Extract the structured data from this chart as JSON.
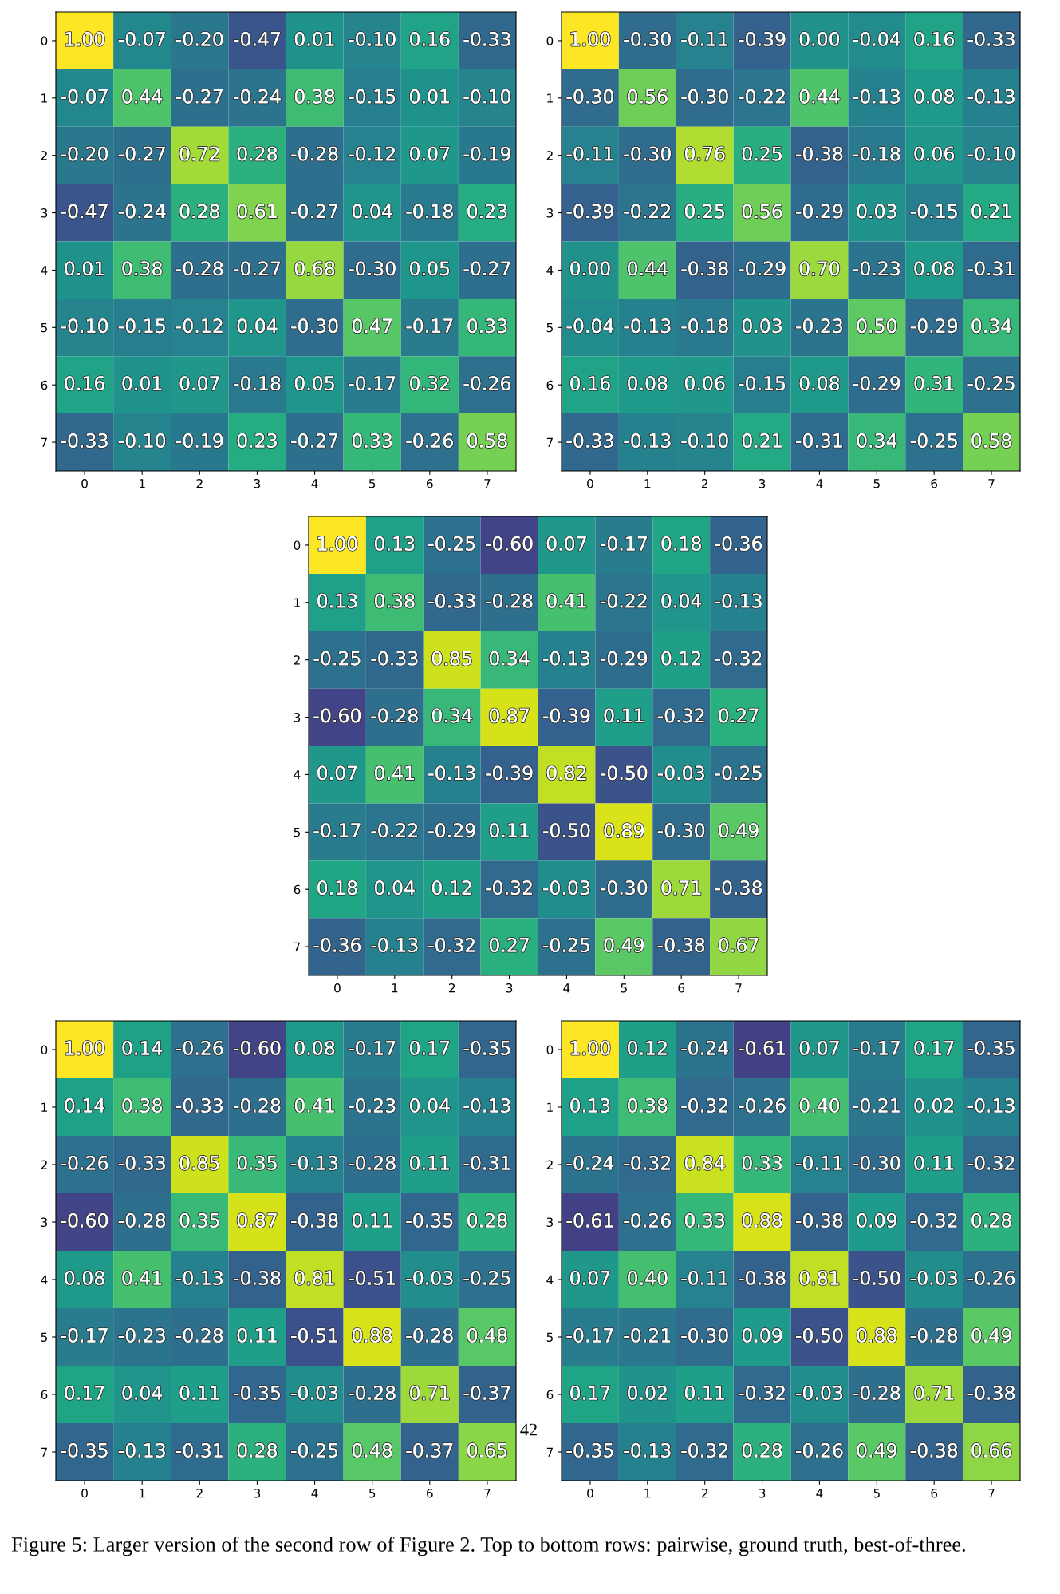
{
  "chart_data": [
    {
      "type": "heatmap",
      "categories": [
        "0",
        "1",
        "2",
        "3",
        "4",
        "5",
        "6",
        "7"
      ],
      "y_categories": [
        "0",
        "1",
        "2",
        "3",
        "4",
        "5",
        "6",
        "7"
      ],
      "data_labels": true,
      "cells": [
        [
          1.0,
          -0.07,
          -0.2,
          -0.47,
          0.01,
          -0.1,
          0.16,
          -0.33
        ],
        [
          -0.07,
          0.44,
          -0.27,
          -0.24,
          0.38,
          -0.15,
          0.01,
          -0.1
        ],
        [
          -0.2,
          -0.27,
          0.72,
          0.28,
          -0.28,
          -0.12,
          0.07,
          -0.19
        ],
        [
          -0.47,
          -0.24,
          0.28,
          0.61,
          -0.27,
          0.04,
          -0.18,
          0.23
        ],
        [
          0.01,
          0.38,
          -0.28,
          -0.27,
          0.68,
          -0.3,
          0.05,
          -0.27
        ],
        [
          -0.1,
          -0.15,
          -0.12,
          0.04,
          -0.3,
          0.47,
          -0.17,
          0.33
        ],
        [
          0.16,
          0.01,
          0.07,
          -0.18,
          0.05,
          -0.17,
          0.32,
          -0.26
        ],
        [
          -0.33,
          -0.1,
          -0.19,
          0.23,
          -0.27,
          0.33,
          -0.26,
          0.58
        ]
      ],
      "cell_labels": [
        [
          "1.00",
          "-0.07",
          "-0.20",
          "-0.47",
          "0.01",
          "-0.10",
          "0.16",
          "-0.33"
        ],
        [
          "-0.07",
          "0.44",
          "-0.27",
          "-0.24",
          "0.38",
          "-0.15",
          "0.01",
          "-0.10"
        ],
        [
          "-0.20",
          "-0.27",
          "0.72",
          "0.28",
          "-0.28",
          "-0.12",
          "0.07",
          "-0.19"
        ],
        [
          "-0.47",
          "-0.24",
          "0.28",
          "0.61",
          "-0.27",
          "0.04",
          "-0.18",
          "0.23"
        ],
        [
          "0.01",
          "0.38",
          "-0.28",
          "-0.27",
          "0.68",
          "-0.30",
          "0.05",
          "-0.27"
        ],
        [
          "-0.10",
          "-0.15",
          "-0.12",
          "0.04",
          "-0.30",
          "0.47",
          "-0.17",
          "0.33"
        ],
        [
          "0.16",
          "0.01",
          "0.07",
          "-0.18",
          "0.05",
          "-0.17",
          "0.32",
          "-0.26"
        ],
        [
          "-0.33",
          "-0.10",
          "-0.19",
          "0.23",
          "-0.27",
          "0.33",
          "-0.26",
          "0.58"
        ]
      ]
    },
    {
      "type": "heatmap",
      "categories": [
        "0",
        "1",
        "2",
        "3",
        "4",
        "5",
        "6",
        "7"
      ],
      "y_categories": [
        "0",
        "1",
        "2",
        "3",
        "4",
        "5",
        "6",
        "7"
      ],
      "data_labels": true,
      "cells": [
        [
          1.0,
          -0.3,
          -0.11,
          -0.39,
          0.0,
          -0.04,
          0.16,
          -0.33
        ],
        [
          -0.3,
          0.56,
          -0.3,
          -0.22,
          0.44,
          -0.13,
          0.08,
          -0.13
        ],
        [
          -0.11,
          -0.3,
          0.76,
          0.25,
          -0.38,
          -0.18,
          0.06,
          -0.1
        ],
        [
          -0.39,
          -0.22,
          0.25,
          0.56,
          -0.29,
          0.03,
          -0.15,
          0.21
        ],
        [
          0.0,
          0.44,
          -0.38,
          -0.29,
          0.7,
          -0.23,
          0.08,
          -0.31
        ],
        [
          -0.04,
          -0.13,
          -0.18,
          0.03,
          -0.23,
          0.5,
          -0.29,
          0.34
        ],
        [
          0.16,
          0.08,
          0.06,
          -0.15,
          0.08,
          -0.29,
          0.31,
          -0.25
        ],
        [
          -0.33,
          -0.13,
          -0.1,
          0.21,
          -0.31,
          0.34,
          -0.25,
          0.58
        ]
      ],
      "cell_labels": [
        [
          "1.00",
          "-0.30",
          "-0.11",
          "-0.39",
          "0.00",
          "-0.04",
          "0.16",
          "-0.33"
        ],
        [
          "-0.30",
          "0.56",
          "-0.30",
          "-0.22",
          "0.44",
          "-0.13",
          "0.08",
          "-0.13"
        ],
        [
          "-0.11",
          "-0.30",
          "0.76",
          "0.25",
          "-0.38",
          "-0.18",
          "0.06",
          "-0.10"
        ],
        [
          "-0.39",
          "-0.22",
          "0.25",
          "0.56",
          "-0.29",
          "0.03",
          "-0.15",
          "0.21"
        ],
        [
          "0.00",
          "0.44",
          "-0.38",
          "-0.29",
          "0.70",
          "-0.23",
          "0.08",
          "-0.31"
        ],
        [
          "-0.04",
          "-0.13",
          "-0.18",
          "0.03",
          "-0.23",
          "0.50",
          "-0.29",
          "0.34"
        ],
        [
          "0.16",
          "0.08",
          "0.06",
          "-0.15",
          "0.08",
          "-0.29",
          "0.31",
          "-0.25"
        ],
        [
          "-0.33",
          "-0.13",
          "-0.10",
          "0.21",
          "-0.31",
          "0.34",
          "-0.25",
          "0.58"
        ]
      ]
    },
    {
      "type": "heatmap",
      "categories": [
        "0",
        "1",
        "2",
        "3",
        "4",
        "5",
        "6",
        "7"
      ],
      "y_categories": [
        "0",
        "1",
        "2",
        "3",
        "4",
        "5",
        "6",
        "7"
      ],
      "data_labels": true,
      "cells": [
        [
          1.0,
          0.13,
          -0.25,
          -0.6,
          0.07,
          -0.17,
          0.18,
          -0.36
        ],
        [
          0.13,
          0.38,
          -0.33,
          -0.28,
          0.41,
          -0.22,
          0.04,
          -0.13
        ],
        [
          -0.25,
          -0.33,
          0.85,
          0.34,
          -0.13,
          -0.29,
          0.12,
          -0.32
        ],
        [
          -0.6,
          -0.28,
          0.34,
          0.87,
          -0.39,
          0.11,
          -0.32,
          0.27
        ],
        [
          0.07,
          0.41,
          -0.13,
          -0.39,
          0.82,
          -0.5,
          -0.03,
          -0.25
        ],
        [
          -0.17,
          -0.22,
          -0.29,
          0.11,
          -0.5,
          0.89,
          -0.3,
          0.49
        ],
        [
          0.18,
          0.04,
          0.12,
          -0.32,
          -0.03,
          -0.3,
          0.71,
          -0.38
        ],
        [
          -0.36,
          -0.13,
          -0.32,
          0.27,
          -0.25,
          0.49,
          -0.38,
          0.67
        ]
      ],
      "cell_labels": [
        [
          "1.00",
          "0.13",
          "-0.25",
          "-0.60",
          "0.07",
          "-0.17",
          "0.18",
          "-0.36"
        ],
        [
          "0.13",
          "0.38",
          "-0.33",
          "-0.28",
          "0.41",
          "-0.22",
          "0.04",
          "-0.13"
        ],
        [
          "-0.25",
          "-0.33",
          "0.85",
          "0.34",
          "-0.13",
          "-0.29",
          "0.12",
          "-0.32"
        ],
        [
          "-0.60",
          "-0.28",
          "0.34",
          "0.87",
          "-0.39",
          "0.11",
          "-0.32",
          "0.27"
        ],
        [
          "0.07",
          "0.41",
          "-0.13",
          "-0.39",
          "0.82",
          "-0.50",
          "-0.03",
          "-0.25"
        ],
        [
          "-0.17",
          "-0.22",
          "-0.29",
          "0.11",
          "-0.50",
          "0.89",
          "-0.30",
          "0.49"
        ],
        [
          "0.18",
          "0.04",
          "0.12",
          "-0.32",
          "-0.03",
          "-0.30",
          "0.71",
          "-0.38"
        ],
        [
          "-0.36",
          "-0.13",
          "-0.32",
          "0.27",
          "-0.25",
          "0.49",
          "-0.38",
          "0.67"
        ]
      ]
    },
    {
      "type": "heatmap",
      "categories": [
        "0",
        "1",
        "2",
        "3",
        "4",
        "5",
        "6",
        "7"
      ],
      "y_categories": [
        "0",
        "1",
        "2",
        "3",
        "4",
        "5",
        "6",
        "7"
      ],
      "data_labels": true,
      "cells": [
        [
          1.0,
          0.14,
          -0.26,
          -0.6,
          0.08,
          -0.17,
          0.17,
          -0.35
        ],
        [
          0.14,
          0.38,
          -0.33,
          -0.28,
          0.41,
          -0.23,
          0.04,
          -0.13
        ],
        [
          -0.26,
          -0.33,
          0.85,
          0.35,
          -0.13,
          -0.28,
          0.11,
          -0.31
        ],
        [
          -0.6,
          -0.28,
          0.35,
          0.87,
          -0.38,
          0.11,
          -0.35,
          0.28
        ],
        [
          0.08,
          0.41,
          -0.13,
          -0.38,
          0.81,
          -0.51,
          -0.03,
          -0.25
        ],
        [
          -0.17,
          -0.23,
          -0.28,
          0.11,
          -0.51,
          0.88,
          -0.28,
          0.48
        ],
        [
          0.17,
          0.04,
          0.11,
          -0.35,
          -0.03,
          -0.28,
          0.71,
          -0.37
        ],
        [
          -0.35,
          -0.13,
          -0.31,
          0.28,
          -0.25,
          0.48,
          -0.37,
          0.65
        ]
      ],
      "cell_labels": [
        [
          "1.00",
          "0.14",
          "-0.26",
          "-0.60",
          "0.08",
          "-0.17",
          "0.17",
          "-0.35"
        ],
        [
          "0.14",
          "0.38",
          "-0.33",
          "-0.28",
          "0.41",
          "-0.23",
          "0.04",
          "-0.13"
        ],
        [
          "-0.26",
          "-0.33",
          "0.85",
          "0.35",
          "-0.13",
          "-0.28",
          "0.11",
          "-0.31"
        ],
        [
          "-0.60",
          "-0.28",
          "0.35",
          "0.87",
          "-0.38",
          "0.11",
          "-0.35",
          "0.28"
        ],
        [
          "0.08",
          "0.41",
          "-0.13",
          "-0.38",
          "0.81",
          "-0.51",
          "-0.03",
          "-0.25"
        ],
        [
          "-0.17",
          "-0.23",
          "-0.28",
          "0.11",
          "-0.51",
          "0.88",
          "-0.28",
          "0.48"
        ],
        [
          "0.17",
          "0.04",
          "0.11",
          "-0.35",
          "-0.03",
          "-0.28",
          "0.71",
          "-0.37"
        ],
        [
          "-0.35",
          "-0.13",
          "-0.31",
          "0.28",
          "-0.25",
          "0.48",
          "-0.37",
          "0.65"
        ]
      ]
    },
    {
      "type": "heatmap",
      "categories": [
        "0",
        "1",
        "2",
        "3",
        "4",
        "5",
        "6",
        "7"
      ],
      "y_categories": [
        "0",
        "1",
        "2",
        "3",
        "4",
        "5",
        "6",
        "7"
      ],
      "data_labels": true,
      "cells": [
        [
          1.0,
          0.12,
          -0.24,
          -0.61,
          0.07,
          -0.17,
          0.17,
          -0.35
        ],
        [
          0.13,
          0.38,
          -0.32,
          -0.26,
          0.4,
          -0.21,
          0.02,
          -0.13
        ],
        [
          -0.24,
          -0.32,
          0.84,
          0.33,
          -0.11,
          -0.3,
          0.11,
          -0.32
        ],
        [
          -0.61,
          -0.26,
          0.33,
          0.88,
          -0.38,
          0.09,
          -0.32,
          0.28
        ],
        [
          0.07,
          0.4,
          -0.11,
          -0.38,
          0.81,
          -0.5,
          -0.03,
          -0.26
        ],
        [
          -0.17,
          -0.21,
          -0.3,
          0.09,
          -0.5,
          0.88,
          -0.28,
          0.49
        ],
        [
          0.17,
          0.02,
          0.11,
          -0.32,
          -0.03,
          -0.28,
          0.71,
          -0.38
        ],
        [
          -0.35,
          -0.13,
          -0.32,
          0.28,
          -0.26,
          0.49,
          -0.38,
          0.66
        ]
      ],
      "cell_labels": [
        [
          "1.00",
          "0.12",
          "-0.24",
          "-0.61",
          "0.07",
          "-0.17",
          "0.17",
          "-0.35"
        ],
        [
          "0.13",
          "0.38",
          "-0.32",
          "-0.26",
          "0.40",
          "-0.21",
          "0.02",
          "-0.13"
        ],
        [
          "-0.24",
          "-0.32",
          "0.84",
          "0.33",
          "-0.11",
          "-0.30",
          "0.11",
          "-0.32"
        ],
        [
          "-0.61",
          "-0.26",
          "0.33",
          "0.88",
          "-0.38",
          "0.09",
          "-0.32",
          "0.28"
        ],
        [
          "0.07",
          "0.40",
          "-0.11",
          "-0.38",
          "0.81",
          "-0.50",
          "-0.03",
          "-0.26"
        ],
        [
          "-0.17",
          "-0.21",
          "-0.30",
          "0.09",
          "-0.50",
          "0.88",
          "-0.28",
          "0.49"
        ],
        [
          "0.17",
          "0.02",
          "0.11",
          "-0.32",
          "-0.03",
          "-0.28",
          "0.71",
          "-0.38"
        ],
        [
          "-0.35",
          "-0.13",
          "-0.32",
          "0.28",
          "-0.26",
          "0.49",
          "-0.38",
          "0.66"
        ]
      ],
      "annotations": [
        "42",
        "Figure 5: Larger version of the second row of Figure 2. Top to bottom rows: pairwise, ground truth, best-of-three."
      ]
    }
  ]
}
